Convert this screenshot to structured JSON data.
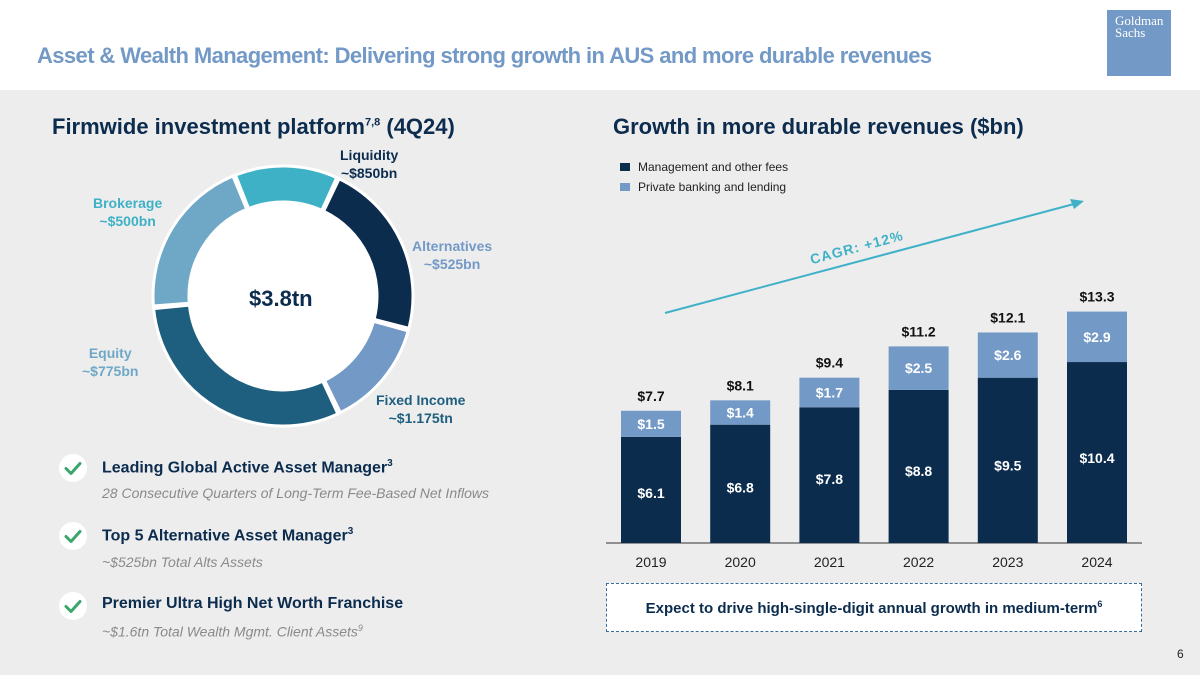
{
  "header": {
    "title": "Asset & Wealth Management: Delivering strong growth in AUS and more durable revenues",
    "logo_line1": "Goldman",
    "logo_line2": "Sachs"
  },
  "left_panel": {
    "title": "Firmwide investment platform",
    "title_sup": "7,8",
    "title_suffix": " (4Q24)",
    "center_total": "$3.8tn",
    "segments": [
      {
        "name": "Liquidity",
        "amount": "~$850bn",
        "value": 850,
        "color": "#0c2c4e"
      },
      {
        "name": "Alternatives",
        "amount": "~$525bn",
        "value": 525,
        "color": "#7399c6"
      },
      {
        "name": "Fixed Income",
        "amount": "~$1.175tn",
        "value": 1175,
        "color": "#1e5e7e"
      },
      {
        "name": "Equity",
        "amount": "~$775bn",
        "value": 775,
        "color": "#6fa8c6"
      },
      {
        "name": "Brokerage",
        "amount": "~$500bn",
        "value": 500,
        "color": "#3fb1c7"
      }
    ],
    "bullets": [
      {
        "title": "Leading Global Active Asset Manager",
        "sup": "3",
        "sub": "28 Consecutive Quarters of Long-Term Fee-Based Net Inflows",
        "sub_sup": ""
      },
      {
        "title": "Top 5 Alternative Asset Manager",
        "sup": "3",
        "sub": "~$525bn Total Alts Assets",
        "sub_sup": ""
      },
      {
        "title": "Premier Ultra High Net Worth Franchise",
        "sup": "",
        "sub": "~$1.6tn Total Wealth Mgmt. Client Assets",
        "sub_sup": "9"
      }
    ]
  },
  "right_panel": {
    "title": "Growth in more durable revenues ($bn)",
    "callout": "Expect to drive high-single-digit annual growth in medium-term",
    "callout_sup": "6"
  },
  "colors": {
    "accent": "#7399c6",
    "navy": "#0c2c4e",
    "light_bar": "#7399c6",
    "check_green": "#3aa66a"
  },
  "chart_data": [
    {
      "type": "pie",
      "title": "Firmwide investment platform (4Q24)",
      "categories": [
        "Liquidity",
        "Alternatives",
        "Fixed Income",
        "Equity",
        "Brokerage"
      ],
      "values": [
        850,
        525,
        1175,
        775,
        500
      ],
      "units": "$bn",
      "total_label": "$3.8tn"
    },
    {
      "type": "bar",
      "stacked": true,
      "title": "Growth in more durable revenues ($bn)",
      "categories": [
        "2019",
        "2020",
        "2021",
        "2022",
        "2023",
        "2024"
      ],
      "series": [
        {
          "name": "Management and other fees",
          "color": "#0c2c4e",
          "values": [
            6.1,
            6.8,
            7.8,
            8.8,
            9.5,
            10.4
          ],
          "labels": [
            "$6.1",
            "$6.8",
            "$7.8",
            "$8.8",
            "$9.5",
            "$10.4"
          ]
        },
        {
          "name": "Private banking and lending",
          "color": "#7399c6",
          "values": [
            1.5,
            1.4,
            1.7,
            2.5,
            2.6,
            2.9
          ],
          "labels": [
            "$1.5",
            "$1.4",
            "$1.7",
            "$2.5",
            "$2.6",
            "$2.9"
          ]
        }
      ],
      "totals": [
        7.7,
        8.1,
        9.4,
        11.2,
        12.1,
        13.3
      ],
      "total_labels": [
        "$7.7",
        "$8.1",
        "$9.4",
        "$11.2",
        "$12.1",
        "$13.3"
      ],
      "annotation": "CAGR: +12%",
      "legend": "top-left",
      "grid": false
    }
  ]
}
